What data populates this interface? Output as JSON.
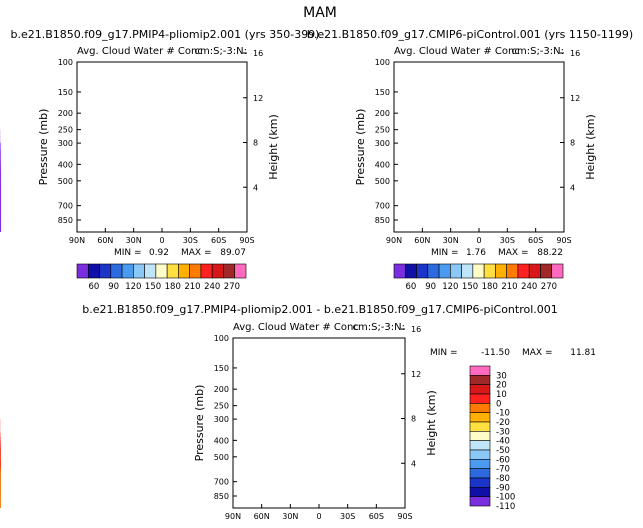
{
  "page_title": "MAM",
  "chart_data": [
    {
      "type": "heatmap",
      "title": "b.e21.B1850.f09_g17.PMIP4-pliomip2.001 (yrs 350-399)",
      "subtitle_left": "Avg. Cloud Water # Conc",
      "subtitle_right": "cm:S;-3:N:",
      "ylabel": "Pressure (mb)",
      "y2label": "Height (km)",
      "x_ticks": [
        "90N",
        "60N",
        "30N",
        "0",
        "30S",
        "60S",
        "90S"
      ],
      "y_ticks": [
        "100",
        "150",
        "200",
        "250",
        "300",
        "400",
        "500",
        "700",
        "850"
      ],
      "y2_ticks": [
        "16",
        "12",
        "8",
        "4"
      ],
      "min_label": "MIN =",
      "min_value": "0.92",
      "max_label": "MAX =",
      "max_value": "89.07",
      "colorbar_labels": [
        "60",
        "90",
        "120",
        "150",
        "180",
        "210",
        "240",
        "270"
      ]
    },
    {
      "type": "heatmap",
      "title": "b.e21.B1850.f09_g17.CMIP6-piControl.001 (yrs 1150-1199)",
      "subtitle_left": "Avg. Cloud Water # Conc",
      "subtitle_right": "cm:S;-3:N:",
      "ylabel": "Pressure (mb)",
      "y2label": "Height (km)",
      "x_ticks": [
        "90N",
        "60N",
        "30N",
        "0",
        "30S",
        "60S",
        "90S"
      ],
      "y_ticks": [
        "100",
        "150",
        "200",
        "250",
        "300",
        "400",
        "500",
        "700",
        "850"
      ],
      "y2_ticks": [
        "16",
        "12",
        "8",
        "4"
      ],
      "min_label": "MIN =",
      "min_value": "1.76",
      "max_label": "MAX =",
      "max_value": "88.22",
      "colorbar_labels": [
        "60",
        "90",
        "120",
        "150",
        "180",
        "210",
        "240",
        "270"
      ]
    },
    {
      "type": "heatmap",
      "title": "b.e21.B1850.f09_g17.PMIP4-pliomip2.001 - b.e21.B1850.f09_g17.CMIP6-piControl.001",
      "subtitle_left": "Avg. Cloud Water # Conc",
      "subtitle_right": "cm:S;-3:N:",
      "ylabel": "Pressure (mb)",
      "y2label": "Height (km)",
      "x_ticks": [
        "90N",
        "60N",
        "30N",
        "0",
        "30S",
        "60S",
        "90S"
      ],
      "y_ticks": [
        "100",
        "150",
        "200",
        "250",
        "300",
        "400",
        "500",
        "700",
        "850"
      ],
      "y2_ticks": [
        "16",
        "12",
        "8",
        "4"
      ],
      "min_label": "MIN =",
      "min_value": "-11.50",
      "max_label": "MAX =",
      "max_value": "11.81",
      "colorbar_labels": [
        "30",
        "20",
        "10",
        "0",
        "-10",
        "-20",
        "-30",
        "-40",
        "-50",
        "-60",
        "-70",
        "-80",
        "-90",
        "-100",
        "-110"
      ]
    }
  ],
  "colors": {
    "main_fill": "#8a2be2",
    "blue_patch": "#1f3fc8",
    "diff_red": "#f01818",
    "diff_orange": "#f08c1e",
    "abs_scale": [
      "#7b2ee0",
      "#1010a8",
      "#1a35c8",
      "#2d6ae0",
      "#4a9af0",
      "#8cc8f5",
      "#c0e4f8",
      "#fffcc8",
      "#ffe040",
      "#ffb000",
      "#ff7a00",
      "#ff2020",
      "#d81818",
      "#a02828",
      "#ff69c0"
    ],
    "diff_scale": [
      "#ff69c0",
      "#a02828",
      "#d81818",
      "#ff2020",
      "#ff7a00",
      "#ffb000",
      "#ffe040",
      "#fffcc8",
      "#c0e4f8",
      "#8cc8f5",
      "#4a9af0",
      "#2d6ae0",
      "#1a35c8",
      "#1010a8",
      "#7b2ee0"
    ]
  }
}
